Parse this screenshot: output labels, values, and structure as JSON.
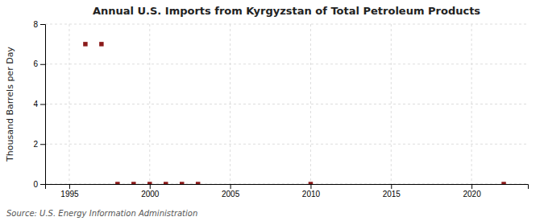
{
  "chart_data": {
    "type": "scatter",
    "title": "Annual U.S. Imports from Kyrgyzstan of Total Petroleum Products",
    "ylabel": "Thousand Barrels per Day",
    "source": "Source: U.S. Energy Information Administration",
    "x": [
      1996,
      1997,
      1998,
      1999,
      2000,
      2001,
      2002,
      2003,
      2010,
      2022
    ],
    "values": [
      7.0,
      7.0,
      0.0,
      0.0,
      0.0,
      0.0,
      0.0,
      0.0,
      0.0,
      0.0
    ],
    "color": "#8b1a1a",
    "marker": "square",
    "xlim": [
      1993.5,
      2023.5
    ],
    "xticks": [
      1995,
      2000,
      2005,
      2010,
      2015,
      2020
    ],
    "ylim": [
      0,
      8
    ],
    "yticks": [
      0,
      2,
      4,
      6,
      8
    ],
    "grid": true
  }
}
